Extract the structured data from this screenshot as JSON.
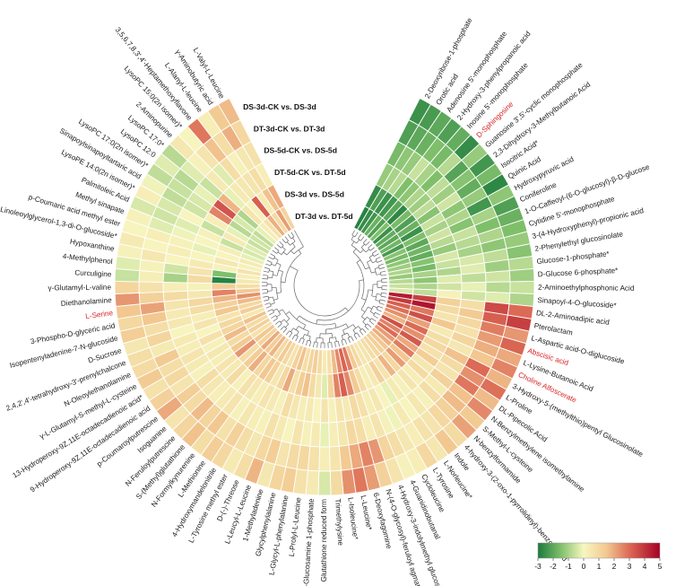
{
  "chart_data": {
    "type": "heatmap",
    "layout": "circular",
    "rings": [
      "DT-3d vs. DT-5d",
      "DS-3d vs. DS-5d",
      "DT-5d-CK vs. DT-5d",
      "DS-5d-CK vs. DS-5d",
      "DT-3d-CK vs. DT-3d",
      "DS-3d-CK vs. DS-3d"
    ],
    "highlight_color": "#d62728",
    "colorscale": {
      "min": -3,
      "max": 5,
      "ticks": [
        "-3",
        "-2",
        "-1",
        "0",
        "1",
        "2",
        "3",
        "4",
        "5"
      ],
      "stops": [
        {
          "v": -3,
          "c": "#1a7a3c"
        },
        {
          "v": -1.5,
          "c": "#7fbf6a"
        },
        {
          "v": 0,
          "c": "#f7f7c0"
        },
        {
          "v": 1.5,
          "c": "#f2c890"
        },
        {
          "v": 3,
          "c": "#dc6a55"
        },
        {
          "v": 5,
          "c": "#a50026"
        }
      ]
    },
    "metabolites": [
      {
        "name": "2-Deoxyribose-1-phosphate",
        "values": [
          -2.8,
          -2.6,
          -1.2,
          -1.6,
          -2.2,
          -2.5
        ]
      },
      {
        "name": "Orotic acid",
        "values": [
          -2.6,
          -2.2,
          -1.0,
          -1.3,
          -2.0,
          -2.3
        ]
      },
      {
        "name": "Adenosine 5'-monophosphate",
        "values": [
          -2.4,
          -2.5,
          -0.8,
          -1.2,
          -1.8,
          -2.0
        ]
      },
      {
        "name": "2-Hydroxy-3-phenylpropanoic acid",
        "values": [
          -1.8,
          -2.4,
          -1.5,
          -0.6,
          -1.5,
          -2.2
        ]
      },
      {
        "name": "Inosine 5'-monophosphate",
        "values": [
          -2.2,
          -2.0,
          -1.3,
          -1.0,
          -1.6,
          -1.9
        ]
      },
      {
        "name": "D-Sphingosine",
        "values": [
          -1.5,
          -2.7,
          -0.9,
          -1.5,
          -0.8,
          -2.6
        ],
        "highlight": true
      },
      {
        "name": "Guanosine 3',5'-cyclic monophosphate",
        "values": [
          -2.5,
          -1.6,
          -1.1,
          -0.7,
          -2.1,
          -1.2
        ]
      },
      {
        "name": "2,3-Dihydroxy-3-Methylbutanoic Acid",
        "values": [
          -1.9,
          -2.2,
          -0.7,
          -1.1,
          -1.4,
          -2.4
        ]
      },
      {
        "name": "Isocitric Acid*",
        "values": [
          -2.0,
          -1.8,
          -1.4,
          -0.5,
          -1.9,
          -1.6
        ]
      },
      {
        "name": "Quinic Acid",
        "values": [
          -1.7,
          -2.5,
          -0.6,
          -1.3,
          -1.2,
          -2.7
        ]
      },
      {
        "name": "Hydroxypyruvic acid",
        "values": [
          -2.3,
          -1.5,
          -1.0,
          -0.9,
          -2.4,
          -1.3
        ]
      },
      {
        "name": "Coniferoline",
        "values": [
          -1.4,
          -2.0,
          -0.5,
          -1.4,
          -1.0,
          -2.2
        ]
      },
      {
        "name": "1-O-Caffeoyl-(6-O-glucosyl)-β-D-glucose",
        "values": [
          -1.6,
          -1.7,
          -0.8,
          -0.6,
          -1.5,
          -1.8
        ]
      },
      {
        "name": "Cytidine 5'-monophosphate",
        "values": [
          -1.3,
          -1.9,
          -1.2,
          -0.8,
          -0.9,
          -1.5
        ]
      },
      {
        "name": "3-(4-Hydroxyphenyl)-propionic acid",
        "values": [
          -1.1,
          -1.4,
          -0.4,
          -1.0,
          -1.3,
          -1.2
        ]
      },
      {
        "name": "2-Phenylethyl glucosinolate",
        "values": [
          -0.9,
          -1.6,
          -0.6,
          -0.4,
          -0.7,
          -1.4
        ]
      },
      {
        "name": "Glucose-1-phosphate*",
        "values": [
          -1.2,
          -1.0,
          -0.9,
          -0.3,
          -1.1,
          -0.8
        ]
      },
      {
        "name": "D-Glucose 6-phosphate*",
        "values": [
          -0.8,
          -1.3,
          -0.3,
          -0.7,
          -0.5,
          -1.1
        ]
      },
      {
        "name": "2-Aminoethylphosphonic Acid",
        "values": [
          -0.6,
          -0.9,
          -0.5,
          -0.2,
          -0.8,
          -0.6
        ]
      },
      {
        "name": "Sinapoyl-4-O-glucoside*",
        "values": [
          -0.4,
          -0.7,
          0.2,
          -0.5,
          -0.3,
          -0.9
        ]
      },
      {
        "name": "DL-2-Aminoadipic acid",
        "values": [
          4.5,
          3.8,
          1.2,
          0.8,
          3.6,
          3.0
        ]
      },
      {
        "name": "Pterolactam",
        "values": [
          3.9,
          4.6,
          0.9,
          1.4,
          3.2,
          3.8
        ]
      },
      {
        "name": "L-Aspartic acid-O-diglucoside",
        "values": [
          3.2,
          2.8,
          0.6,
          1.0,
          2.7,
          2.3
        ]
      },
      {
        "name": "Abscisic acid",
        "values": [
          2.9,
          3.5,
          1.5,
          0.7,
          2.2,
          3.1
        ],
        "highlight": true
      },
      {
        "name": "L-Lysine-Butanoic Acid",
        "values": [
          2.4,
          2.1,
          0.4,
          1.1,
          1.9,
          2.0
        ]
      },
      {
        "name": "Choline Alfoscerate",
        "values": [
          1.8,
          3.0,
          0.8,
          0.5,
          1.5,
          2.6
        ],
        "highlight": true
      },
      {
        "name": "3-Hydroxy-5-(methylthio)pentyl Glucosinolate",
        "values": [
          3.5,
          2.4,
          1.0,
          1.6,
          3.0,
          1.8
        ]
      },
      {
        "name": "L-Proline",
        "values": [
          2.6,
          3.3,
          0.7,
          0.9,
          2.4,
          2.9
        ]
      },
      {
        "name": "DL-Pipecolic Acid",
        "values": [
          3.0,
          2.0,
          1.3,
          0.6,
          2.8,
          1.7
        ]
      },
      {
        "name": "N-Benzylmethylene isomethylamine",
        "values": [
          2.2,
          2.7,
          0.5,
          1.2,
          1.6,
          2.5
        ]
      },
      {
        "name": "S-Methyl-L-cysteine",
        "values": [
          1.9,
          1.5,
          0.9,
          0.4,
          1.7,
          1.4
        ]
      },
      {
        "name": "N-benzylformamide",
        "values": [
          1.5,
          2.2,
          0.3,
          0.8,
          1.2,
          2.1
        ]
      },
      {
        "name": "4-hydroxy-3-(2-oxo-1-pyrrolidinyl)-benzoic Acid",
        "values": [
          1.2,
          1.0,
          0.6,
          0.2,
          1.0,
          0.9
        ]
      },
      {
        "name": "Indole",
        "values": [
          1.0,
          1.8,
          0.2,
          0.5,
          0.6,
          1.5
        ]
      },
      {
        "name": "L-Norleucine*",
        "values": [
          0.8,
          0.6,
          0.4,
          0.1,
          0.7,
          0.5
        ]
      },
      {
        "name": "L-Tyrosine",
        "values": [
          0.6,
          1.2,
          -0.2,
          0.4,
          0.3,
          1.0
        ]
      },
      {
        "name": "Cycloleucine",
        "values": [
          0.5,
          0.4,
          0.1,
          -0.1,
          0.5,
          0.3
        ]
      },
      {
        "name": "4-Guanidinobutanal",
        "values": [
          0.9,
          0.3,
          0.5,
          0.2,
          0.8,
          0.2
        ]
      },
      {
        "name": "4-Hydroxy-3-indolylmethyl glucosinolate",
        "values": [
          1.4,
          0.8,
          0.3,
          0.6,
          1.1,
          0.6
        ]
      },
      {
        "name": "N-(4-O-glycosyl)-feruloyl agmatine",
        "values": [
          2.7,
          1.4,
          0.7,
          0.3,
          2.3,
          1.2
        ]
      },
      {
        "name": "6-Deoxyfagomine",
        "values": [
          3.1,
          2.5,
          0.9,
          0.8,
          2.6,
          2.2
        ]
      },
      {
        "name": "L-Leucine*",
        "values": [
          2.5,
          3.2,
          0.4,
          1.0,
          2.0,
          2.8
        ]
      },
      {
        "name": "L-Isoleucine*",
        "values": [
          1.7,
          2.6,
          0.6,
          0.5,
          1.4,
          2.4
        ]
      },
      {
        "name": "Trimethylysine",
        "values": [
          0.7,
          1.1,
          0.2,
          0.3,
          0.6,
          0.9
        ]
      },
      {
        "name": "Glutathione reduced form",
        "values": [
          0.4,
          -0.3,
          0.6,
          -0.2,
          0.3,
          -0.4
        ]
      },
      {
        "name": "D-Glucosamine 1-phosphate",
        "values": [
          0.9,
          0.5,
          0.1,
          0.4,
          0.7,
          0.4
        ]
      },
      {
        "name": "L-Prolyl-L-Leucine",
        "values": [
          1.3,
          0.9,
          0.4,
          0.2,
          1.0,
          0.7
        ]
      },
      {
        "name": "L-Glycyl-L-phenylalanine",
        "values": [
          1.1,
          1.6,
          0.3,
          0.6,
          0.9,
          1.3
        ]
      },
      {
        "name": "Glycylphenylalanine",
        "values": [
          0.8,
          1.3,
          0.5,
          0.1,
          0.6,
          1.1
        ]
      },
      {
        "name": "1-Methyladenine",
        "values": [
          1.6,
          0.7,
          0.8,
          0.4,
          1.3,
          0.5
        ]
      },
      {
        "name": "L-Leucyl-L-Leucine",
        "values": [
          1.2,
          2.0,
          0.2,
          0.7,
          1.0,
          1.8
        ]
      },
      {
        "name": "D-(-)-Threose",
        "values": [
          0.6,
          1.0,
          0.4,
          0.2,
          0.5,
          0.8
        ]
      },
      {
        "name": "L-Tyrosine methyl ester",
        "values": [
          1.0,
          0.5,
          0.6,
          0.3,
          0.8,
          0.4
        ]
      },
      {
        "name": "4-Hydroxymandelonitrile",
        "values": [
          1.4,
          1.2,
          0.3,
          0.5,
          1.2,
          1.0
        ]
      },
      {
        "name": "L-Methionine",
        "values": [
          0.9,
          1.5,
          0.5,
          0.2,
          0.7,
          1.3
        ]
      },
      {
        "name": "N-Formylkynurenine",
        "values": [
          1.8,
          1.0,
          0.7,
          0.6,
          1.5,
          0.8
        ]
      },
      {
        "name": "S-(Methyl)glutathione",
        "values": [
          1.3,
          1.9,
          0.2,
          0.4,
          1.1,
          1.6
        ]
      },
      {
        "name": "N-Feruloylputrescine",
        "values": [
          2.0,
          1.3,
          0.9,
          0.3,
          1.7,
          1.1
        ]
      },
      {
        "name": "Isoguanine",
        "values": [
          1.1,
          0.8,
          0.4,
          0.5,
          0.9,
          0.6
        ]
      },
      {
        "name": "p-Coumaroylputrescine",
        "values": [
          1.5,
          2.3,
          0.6,
          0.8,
          1.3,
          2.0
        ]
      },
      {
        "name": "9-Hydroperoxy-9Z,11E-octadecadienoic acid",
        "values": [
          0.7,
          1.4,
          0.3,
          0.2,
          0.6,
          1.2
        ]
      },
      {
        "name": "13-Hydroperoxy-9Z,11E-octadecadienoic acid*",
        "values": [
          1.2,
          0.9,
          0.5,
          0.4,
          1.0,
          0.7
        ]
      },
      {
        "name": "γ-L-Glutamyl-S-methyl-L-cysteine",
        "values": [
          0.9,
          1.7,
          0.2,
          0.6,
          0.8,
          1.4
        ]
      },
      {
        "name": "N-Oleoylethanolamine",
        "values": [
          1.6,
          1.1,
          0.7,
          0.3,
          1.4,
          0.9
        ]
      },
      {
        "name": "2,4,2',4'-tetrahydroxy-3'-prenylchalcone",
        "values": [
          0.5,
          1.0,
          0.1,
          0.4,
          0.4,
          0.8
        ]
      },
      {
        "name": "D-Sucrose",
        "values": [
          1.3,
          0.6,
          0.6,
          0.1,
          1.1,
          0.5
        ]
      },
      {
        "name": "Isopentenyladenine-7-N-glucoside",
        "values": [
          1.0,
          1.5,
          0.3,
          0.5,
          0.8,
          1.3
        ]
      },
      {
        "name": "3-Phospho-D-glyceric acid",
        "values": [
          1.7,
          1.2,
          0.8,
          0.4,
          1.5,
          1.0
        ]
      },
      {
        "name": "L-Serine",
        "values": [
          2.4,
          1.8,
          1.0,
          0.6,
          2.1,
          1.5
        ],
        "highlight": true
      },
      {
        "name": "Diethanolamine",
        "values": [
          1.4,
          2.6,
          0.5,
          0.9,
          1.2,
          2.3
        ]
      },
      {
        "name": "γ-Glutamyl-L-valine",
        "values": [
          0.8,
          1.3,
          0.2,
          0.3,
          0.7,
          1.1
        ]
      },
      {
        "name": "Curculigine",
        "values": [
          0.5,
          -2.8,
          0.9,
          -1.0,
          0.3,
          -0.6
        ]
      },
      {
        "name": "4-Methylphenol",
        "values": [
          0.3,
          -1.5,
          0.6,
          -0.5,
          0.2,
          -0.3
        ]
      },
      {
        "name": "Hypoxanthine",
        "values": [
          0.6,
          0.2,
          0.4,
          0.1,
          0.5,
          0.2
        ]
      },
      {
        "name": "2-Linoleoylglycerol-1,3-di-O-glucoside*",
        "values": [
          0.2,
          0.5,
          0.1,
          0.3,
          0.1,
          0.4
        ]
      },
      {
        "name": "p-Coumaric acid methyl ester",
        "values": [
          0.4,
          0.1,
          -0.2,
          0.2,
          0.3,
          0.1
        ]
      },
      {
        "name": "Methyl sinapate",
        "values": [
          -0.2,
          0.3,
          0.1,
          -0.1,
          -0.3,
          0.2
        ]
      },
      {
        "name": "Palmitoleic Acid",
        "values": [
          -0.4,
          -0.6,
          0.2,
          -0.3,
          -0.5,
          -0.4
        ]
      },
      {
        "name": "LysoPE 14:0(2n isomer)*",
        "values": [
          -0.3,
          0.4,
          -0.6,
          0.1,
          -0.4,
          0.3
        ]
      },
      {
        "name": "Sinapoylsinapoyltartaric acid",
        "values": [
          -0.6,
          -0.2,
          0.3,
          -0.5,
          -0.7,
          -0.1
        ]
      },
      {
        "name": "LysoPC 17:0(2n isomer)*",
        "values": [
          -0.5,
          -0.8,
          2.6,
          -0.4,
          -0.6,
          -0.7
        ]
      },
      {
        "name": "LysoPC 12:0",
        "values": [
          -0.7,
          -0.4,
          3.4,
          -0.2,
          -0.8,
          -0.3
        ]
      },
      {
        "name": "LysoPC 17:0*",
        "values": [
          -0.2,
          -0.9,
          1.8,
          -0.6,
          -0.3,
          -0.8
        ]
      },
      {
        "name": "2-Aminopurine",
        "values": [
          0.3,
          0.6,
          -0.2,
          0.4,
          0.2,
          0.5
        ]
      },
      {
        "name": "LysoPC 15:0(2n isomer)*",
        "values": [
          0.7,
          0.2,
          0.4,
          -0.3,
          0.6,
          0.1
        ]
      },
      {
        "name": "3,5,6,7,8,3',4'-Heptamethoxyflavone",
        "values": [
          1.9,
          3.2,
          0.5,
          0.8,
          1.6,
          2.8
        ]
      },
      {
        "name": "L-Alanyl-L-leucine",
        "values": [
          0.9,
          0.4,
          0.6,
          0.2,
          0.8,
          0.3
        ]
      },
      {
        "name": "γ-Aminobutyric acid",
        "values": [
          2.2,
          1.6,
          0.8,
          0.5,
          1.9,
          1.4
        ]
      },
      {
        "name": "L-Valyl-L-Leucine",
        "values": [
          1.1,
          2.0,
          0.3,
          0.7,
          1.0,
          1.7
        ]
      }
    ]
  }
}
